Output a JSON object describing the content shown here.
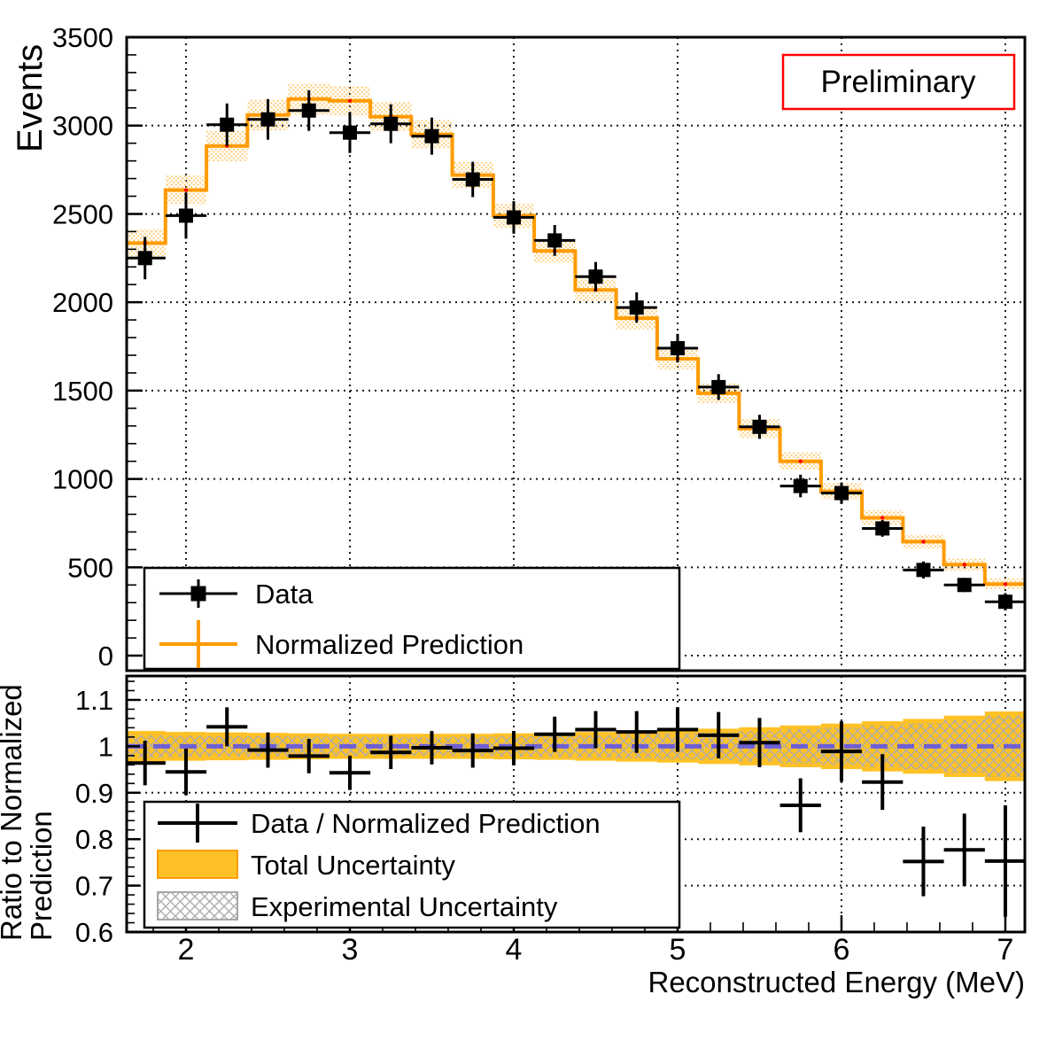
{
  "preliminary_label": "Preliminary",
  "axes": {
    "x": {
      "title": "Reconstructed Energy (MeV)",
      "tick_values": [
        2,
        3,
        4,
        5,
        6,
        7
      ],
      "tick_labels": [
        "2",
        "3",
        "4",
        "5",
        "6",
        "7"
      ],
      "min": 1.638,
      "max": 7.119,
      "minor_step": 0.2
    },
    "y_events": {
      "title": "Events",
      "tick_values": [
        0,
        500,
        1000,
        1500,
        2000,
        2500,
        3000,
        3500
      ],
      "tick_labels": [
        "0",
        "500",
        "1000",
        "1500",
        "2000",
        "2500",
        "3000",
        "3500"
      ],
      "min": -85,
      "max": 3500,
      "minor_step": 100
    },
    "y_ratio": {
      "title_lines": [
        "Ratio to Normalized",
        "Prediction"
      ],
      "tick_values": [
        0.6,
        0.7,
        0.8,
        0.9,
        1.0,
        1.1
      ],
      "tick_labels": [
        "0.6",
        "0.7",
        "0.8",
        "0.9",
        "1",
        "1.1"
      ],
      "min": 0.6,
      "max": 1.1515,
      "minor_step": 0.02
    }
  },
  "legend_top": {
    "items": [
      {
        "label": "Data"
      },
      {
        "label": "Normalized Prediction"
      }
    ]
  },
  "legend_ratio": {
    "items": [
      {
        "label": "Data / Normalized Prediction"
      },
      {
        "label": "Total Uncertainty"
      },
      {
        "label": "Experimental Uncertainty"
      }
    ]
  },
  "colors": {
    "prediction_line": "#FF9B00",
    "prediction_band_dots": "#FFC96B",
    "prediction_marker": "#FF0000",
    "total_uncertainty_fill": "#FFC125",
    "experimental_hatch": "#ADADAD",
    "reference_line": "#6E5FD5",
    "data_marker": "#000000",
    "preliminary_red": "#FF0000"
  },
  "chart_data": [
    {
      "type": "bar",
      "title": "Event spectrum with normalized prediction",
      "xlabel": "Reconstructed Energy (MeV)",
      "ylabel": "Events",
      "xlim": [
        1.638,
        7.119
      ],
      "ylim": [
        -85,
        3500
      ],
      "grid": true,
      "bin_half_width": 0.125,
      "bin_centers": [
        1.75,
        2.0,
        2.25,
        2.5,
        2.75,
        3.0,
        3.25,
        3.5,
        3.75,
        4.0,
        4.25,
        4.5,
        4.75,
        5.0,
        5.25,
        5.5,
        5.75,
        6.0,
        6.25,
        6.5,
        6.75,
        7.0
      ],
      "series": [
        {
          "name": "Normalized Prediction",
          "style": "step-histogram-with-band",
          "values": [
            2335,
            2635,
            2885,
            3060,
            3150,
            3140,
            3050,
            2950,
            2720,
            2490,
            2290,
            2070,
            1910,
            1680,
            1485,
            1285,
            1100,
            930,
            780,
            645,
            515,
            405
          ],
          "band_fraction": [
            0.033,
            0.031,
            0.03,
            0.029,
            0.028,
            0.027,
            0.027,
            0.027,
            0.027,
            0.028,
            0.029,
            0.031,
            0.033,
            0.035,
            0.038,
            0.041,
            0.045,
            0.049,
            0.054,
            0.059,
            0.066,
            0.075
          ]
        },
        {
          "name": "Data",
          "style": "errorbar-square",
          "values": [
            2250,
            2490,
            3005,
            3035,
            3085,
            2960,
            3010,
            2940,
            2695,
            2480,
            2350,
            2145,
            1970,
            1740,
            1520,
            1295,
            960,
            920,
            720,
            485,
            400,
            305
          ],
          "y_errors": [
            120,
            130,
            120,
            115,
            115,
            115,
            110,
            105,
            100,
            92,
            87,
            83,
            86,
            81,
            73,
            68,
            64,
            60,
            47,
            48,
            40,
            49
          ]
        }
      ]
    },
    {
      "type": "scatter",
      "title": "Ratio to Normalized Prediction",
      "xlabel": "Reconstructed Energy (MeV)",
      "ylabel": "Ratio to Normalized Prediction",
      "xlim": [
        1.638,
        7.119
      ],
      "ylim": [
        0.6,
        1.1515
      ],
      "grid": true,
      "reference_line": 1.0,
      "bin_half_width": 0.125,
      "bin_centers": [
        1.75,
        2.0,
        2.25,
        2.5,
        2.75,
        3.0,
        3.25,
        3.5,
        3.75,
        4.0,
        4.25,
        4.5,
        4.75,
        5.0,
        5.25,
        5.5,
        5.75,
        6.0,
        6.25,
        6.5,
        6.75,
        7.0
      ],
      "series": [
        {
          "name": "Data / Normalized Prediction",
          "style": "errorbar-cross",
          "values": [
            0.964,
            0.945,
            1.042,
            0.992,
            0.979,
            0.943,
            0.987,
            0.997,
            0.991,
            0.996,
            1.026,
            1.036,
            1.031,
            1.036,
            1.024,
            1.008,
            0.873,
            0.989,
            0.923,
            0.752,
            0.777,
            0.753
          ],
          "y_errors": [
            0.048,
            0.05,
            0.042,
            0.038,
            0.037,
            0.037,
            0.036,
            0.036,
            0.037,
            0.037,
            0.038,
            0.04,
            0.045,
            0.048,
            0.05,
            0.053,
            0.058,
            0.065,
            0.06,
            0.075,
            0.078,
            0.12
          ]
        },
        {
          "name": "Total Uncertainty",
          "style": "band",
          "center": 1.0,
          "half_widths": [
            0.033,
            0.031,
            0.03,
            0.029,
            0.028,
            0.027,
            0.027,
            0.027,
            0.027,
            0.028,
            0.029,
            0.031,
            0.033,
            0.035,
            0.038,
            0.041,
            0.045,
            0.049,
            0.054,
            0.059,
            0.066,
            0.075
          ]
        },
        {
          "name": "Experimental Uncertainty",
          "style": "hatch-band",
          "center": 1.0,
          "half_widths": [
            0.024,
            0.023,
            0.022,
            0.022,
            0.021,
            0.021,
            0.02,
            0.02,
            0.021,
            0.022,
            0.023,
            0.024,
            0.026,
            0.028,
            0.03,
            0.033,
            0.037,
            0.04,
            0.045,
            0.05,
            0.057,
            0.066
          ]
        }
      ]
    }
  ]
}
